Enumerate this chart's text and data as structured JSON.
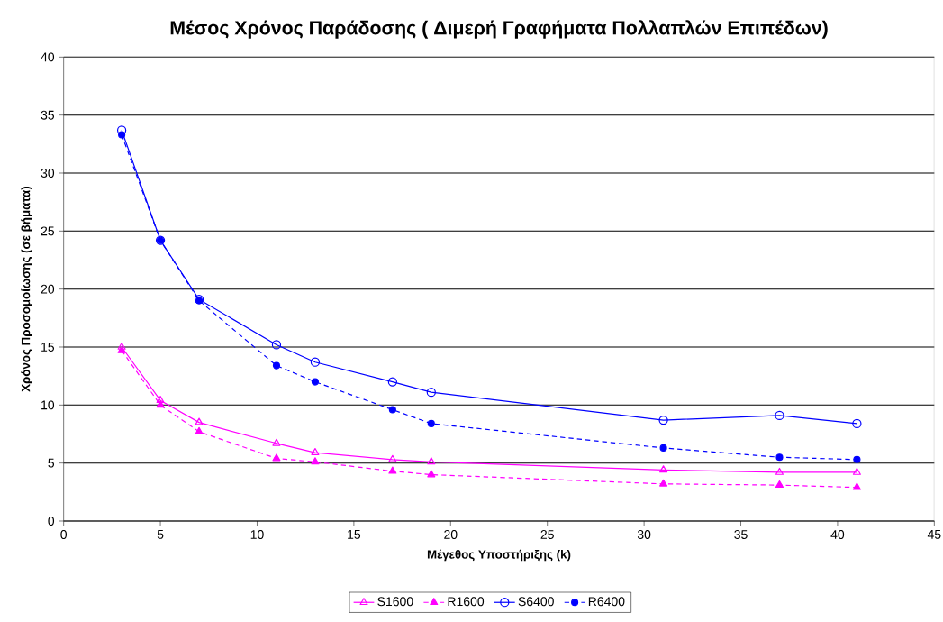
{
  "chart_data": {
    "type": "line",
    "title": "Μέσος Χρόνος Παράδοσης ( Διμερή Γραφήματα Πολλαπλών Επιπέδων)",
    "xlabel": "Μέγεθος Υποστήριξης (k)",
    "ylabel": "Χρόνος Προσομοίωσης (σε βήματα)",
    "x": [
      3,
      5,
      7,
      11,
      13,
      17,
      19,
      31,
      37,
      41
    ],
    "series": [
      {
        "name": "S1600",
        "color": "#ff00ff",
        "marker": "triangle",
        "line_style": "solid",
        "values": [
          15.0,
          10.4,
          8.5,
          6.7,
          5.9,
          5.3,
          5.1,
          4.4,
          4.2,
          4.2
        ]
      },
      {
        "name": "R1600",
        "color": "#ff00ff",
        "marker": "triangle",
        "line_style": "dashed",
        "values": [
          14.7,
          10.0,
          7.7,
          5.4,
          5.1,
          4.3,
          4.0,
          3.2,
          3.1,
          2.9
        ]
      },
      {
        "name": "S6400",
        "color": "#0000ff",
        "marker": "circle",
        "line_style": "solid",
        "values": [
          33.7,
          24.2,
          19.1,
          15.2,
          13.7,
          12.0,
          11.1,
          8.7,
          9.1,
          8.4
        ]
      },
      {
        "name": "R6400",
        "color": "#0000ff",
        "marker": "circle",
        "line_style": "dashed",
        "values": [
          33.3,
          24.2,
          19.0,
          13.4,
          12.0,
          9.6,
          8.4,
          6.3,
          5.5,
          5.3
        ]
      }
    ],
    "xlim": [
      0,
      45
    ],
    "xticks": [
      0,
      5,
      10,
      15,
      20,
      25,
      30,
      35,
      40,
      45
    ],
    "ylim": [
      0,
      40
    ],
    "yticks": [
      0,
      5,
      10,
      15,
      20,
      25,
      30,
      35,
      40
    ],
    "grid": "y",
    "legend": "bottom"
  }
}
